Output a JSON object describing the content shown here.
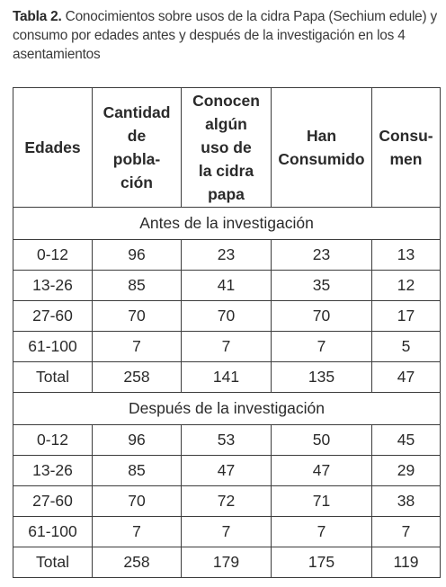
{
  "caption": {
    "label": "Tabla 2.",
    "text": " Conocimientos sobre usos de la cidra Papa (Sechium edule) y consumo por edades antes y después de la investigación en los 4 asentamientos"
  },
  "table": {
    "headers": [
      "Edades",
      "Cantidad de pobla-ción",
      "Conocen algún uso de la cidra papa",
      "Han Consumido",
      "Consu-men"
    ],
    "header_lines": [
      [
        "Edades"
      ],
      [
        "Cantidad",
        "de",
        "pobla-",
        "ción"
      ],
      [
        "Conocen",
        "algún",
        "uso de",
        "la cidra",
        "papa"
      ],
      [
        "Han",
        "Consumido"
      ],
      [
        "Consu-",
        "men"
      ]
    ],
    "sections": [
      {
        "title": "Antes de la investigación",
        "rows": [
          [
            "0-12",
            "96",
            "23",
            "23",
            "13"
          ],
          [
            "13-26",
            "85",
            "41",
            "35",
            "12"
          ],
          [
            "27-60",
            "70",
            "70",
            "70",
            "17"
          ],
          [
            "61-100",
            "7",
            "7",
            "7",
            "5"
          ],
          [
            "Total",
            "258",
            "141",
            "135",
            "47"
          ]
        ]
      },
      {
        "title": "Después de la investigación",
        "rows": [
          [
            "0-12",
            "96",
            "53",
            "50",
            "45"
          ],
          [
            "13-26",
            "85",
            "47",
            "47",
            "29"
          ],
          [
            "27-60",
            "70",
            "72",
            "71",
            "38"
          ],
          [
            "61-100",
            "7",
            "7",
            "7",
            "7"
          ],
          [
            "Total",
            "258",
            "179",
            "175",
            "119"
          ]
        ]
      }
    ]
  }
}
